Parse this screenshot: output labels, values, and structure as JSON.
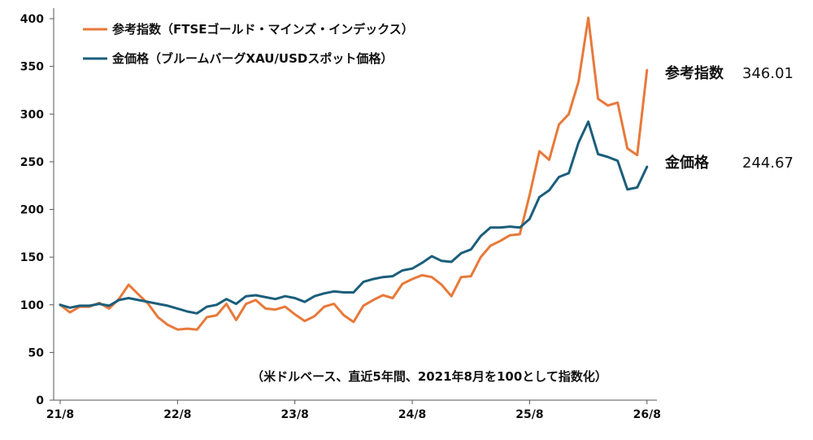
{
  "chart_data": {
    "type": "line",
    "note": "（米ドルベース、直近5年間、2021年8月を100として指数化）",
    "ylim": [
      0,
      400
    ],
    "yticks": [
      "0",
      "50",
      "100",
      "150",
      "200",
      "250",
      "300",
      "350",
      "400"
    ],
    "xticks": [
      {
        "label": "21/8",
        "x": 0
      },
      {
        "label": "22/8",
        "x": 12
      },
      {
        "label": "23/8",
        "x": 24
      },
      {
        "label": "24/8",
        "x": 36
      },
      {
        "label": "25/8",
        "x": 48
      },
      {
        "label": "26/8",
        "x": 60
      }
    ],
    "xlim": [
      0,
      60.8
    ],
    "series": [
      {
        "name": "参考指数（FTSEゴールド・マインズ・インデックス）",
        "color": "#e8793a",
        "end_label": "参考指数",
        "end_value": "346.01",
        "values": [
          100,
          92,
          98,
          98,
          102,
          96,
          106,
          121,
          111,
          101,
          87,
          79,
          74,
          75,
          74,
          87,
          89,
          101,
          84,
          101,
          105,
          96,
          95,
          98,
          90,
          83,
          88,
          98,
          101,
          89,
          82,
          99,
          105,
          110,
          107,
          122,
          127,
          131,
          129,
          121,
          109,
          129,
          130,
          150,
          162,
          167,
          173,
          174,
          215,
          261,
          252,
          289,
          300,
          334,
          401,
          316,
          309,
          312,
          264,
          257,
          346.01
        ]
      },
      {
        "name": "金価格（ブルームバーグXAU/USDスポット価格）",
        "color": "#1b5e7b",
        "end_label": "金価格",
        "end_value": "244.67",
        "values": [
          100,
          97,
          99,
          99,
          101,
          99,
          105,
          107,
          105,
          103,
          101,
          99,
          96,
          93,
          91,
          98,
          100,
          106,
          101,
          109,
          110,
          108,
          106,
          109,
          107,
          103,
          109,
          112,
          114,
          113,
          113,
          124,
          127,
          129,
          130,
          136,
          138,
          144,
          151,
          146,
          145,
          154,
          158,
          172,
          181,
          181,
          182,
          181,
          190,
          213,
          220,
          234,
          238,
          270,
          292,
          258,
          255,
          251,
          221,
          223,
          244.67
        ]
      }
    ]
  }
}
